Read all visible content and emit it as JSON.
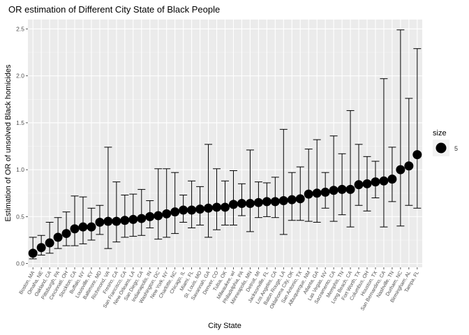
{
  "chart_data": {
    "type": "scatter",
    "title": "OR estimation of Different City State of Black People",
    "xlabel": "City State",
    "ylabel": "Estimation of OR of unsolved Black homicides",
    "ylim": [
      -0.04,
      2.6
    ],
    "yticks": [
      0.0,
      0.5,
      1.0,
      1.5,
      2.0,
      2.5
    ],
    "ytick_labels": [
      "0.0",
      "0.5",
      "1.0",
      "1.5",
      "2.0",
      "2.5"
    ],
    "grid": true,
    "legend": {
      "title": "size",
      "label": "5",
      "placement": "right"
    },
    "point_color": "#000000",
    "panel_color": "#ebebeb",
    "categories": [
      "Boston, MA",
      "Omaha, NE",
      "Oakland, CA",
      "Pittsburgh, PA",
      "Cincinnati, OH",
      "Stockton, CA",
      "Buffalo, NY",
      "Louisville, KY",
      "Baltimore, MD",
      "Richmond, VA",
      "Fresno, CA",
      "San Francisco, CA",
      "New Orleans, LA",
      "San Diego, CA",
      "Indianapolis, IN",
      "Washington, DC",
      "New York, NY",
      "Charlotte, NC",
      "Chicago, IL",
      "Miami, FL",
      "St. Louis, MO",
      "Savannah, GA",
      "Denver, CO",
      "Tulsa, OK",
      "Milwaukee, wI",
      "Philadelphia, PA",
      "Minneapolis, MN",
      "Detroit, MI",
      "Jacksonville, FL",
      "Los Angeles, CA",
      "Baton Rouge, LA",
      "Oklahoma City, OK",
      "San Antonio, TX",
      "Albuquerque, NM",
      "Atlanta, GA",
      "Las Vegas, NV",
      "Sacramento, CA",
      "Memphis, TN",
      "Long Beach, CA",
      "Fort Worth, TX",
      "Columbus, OH",
      "Houston, TX",
      "San Bernardino, CA",
      "Nashville, TN",
      "Durham, NC",
      "Birmingham, AL",
      "Tampa, FL"
    ],
    "estimate": [
      0.11,
      0.17,
      0.22,
      0.28,
      0.32,
      0.37,
      0.39,
      0.39,
      0.44,
      0.45,
      0.45,
      0.46,
      0.47,
      0.48,
      0.5,
      0.51,
      0.53,
      0.55,
      0.57,
      0.57,
      0.58,
      0.59,
      0.6,
      0.6,
      0.63,
      0.64,
      0.64,
      0.65,
      0.66,
      0.66,
      0.67,
      0.68,
      0.69,
      0.74,
      0.75,
      0.76,
      0.78,
      0.79,
      0.79,
      0.84,
      0.85,
      0.87,
      0.88,
      0.9,
      1.0,
      1.04,
      1.16
    ],
    "conf_low": [
      0.05,
      0.09,
      0.11,
      0.16,
      0.19,
      0.19,
      0.21,
      0.25,
      0.31,
      0.16,
      0.23,
      0.28,
      0.29,
      0.3,
      0.38,
      0.26,
      0.28,
      0.32,
      0.44,
      0.38,
      0.41,
      0.28,
      0.36,
      0.41,
      0.41,
      0.51,
      0.34,
      0.49,
      0.5,
      0.49,
      0.31,
      0.46,
      0.46,
      0.45,
      0.44,
      0.59,
      0.45,
      0.52,
      0.39,
      0.62,
      0.56,
      0.7,
      0.39,
      0.66,
      0.4,
      0.62,
      0.59
    ],
    "conf_high": [
      0.28,
      0.3,
      0.44,
      0.49,
      0.55,
      0.72,
      0.71,
      0.59,
      0.62,
      1.24,
      0.87,
      0.73,
      0.74,
      0.79,
      0.67,
      1.01,
      1.01,
      0.97,
      0.73,
      0.88,
      0.82,
      1.27,
      1.01,
      0.88,
      0.99,
      0.85,
      1.21,
      0.87,
      0.86,
      0.92,
      1.43,
      0.97,
      1.03,
      1.22,
      1.32,
      0.97,
      1.36,
      1.17,
      1.63,
      1.27,
      1.14,
      1.09,
      1.97,
      1.24,
      2.49,
      1.76,
      2.29
    ]
  }
}
